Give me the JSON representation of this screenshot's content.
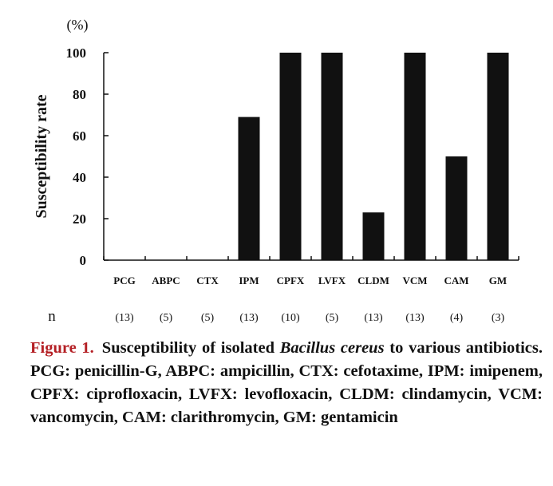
{
  "chart_data": {
    "type": "bar",
    "categories": [
      "PCG",
      "ABPC",
      "CTX",
      "IPM",
      "CPFX",
      "LVFX",
      "CLDM",
      "VCM",
      "CAM",
      "GM"
    ],
    "values": [
      0,
      0,
      0,
      69,
      100,
      100,
      23,
      100,
      50,
      100
    ],
    "ylabel": "Susceptibility rate",
    "yunit": "(%)",
    "ylim": [
      0,
      100
    ],
    "yticks": [
      0,
      20,
      40,
      60,
      80,
      100
    ],
    "n_label": "n",
    "n_values": [
      "(13)",
      "(5)",
      "(5)",
      "(13)",
      "(10)",
      "(5)",
      "(13)",
      "(13)",
      "(4)",
      "(3)"
    ],
    "bar_color": "#111111",
    "grid": false
  },
  "caption": {
    "label": "Figure 1.",
    "text_before": "Susceptibility of isolated ",
    "species": "Bacillus cereus",
    "text_after": " to various antibiotics. PCG: penicillin-G, ABPC: ampicillin, CTX: cefotaxime, IPM: imipenem, CPFX: ciprofloxacin, LVFX: levofloxacin, CLDM: clindamycin, VCM: vancomycin, CAM: clarithromycin, GM: gentamicin",
    "label_color": "#b41f24"
  }
}
